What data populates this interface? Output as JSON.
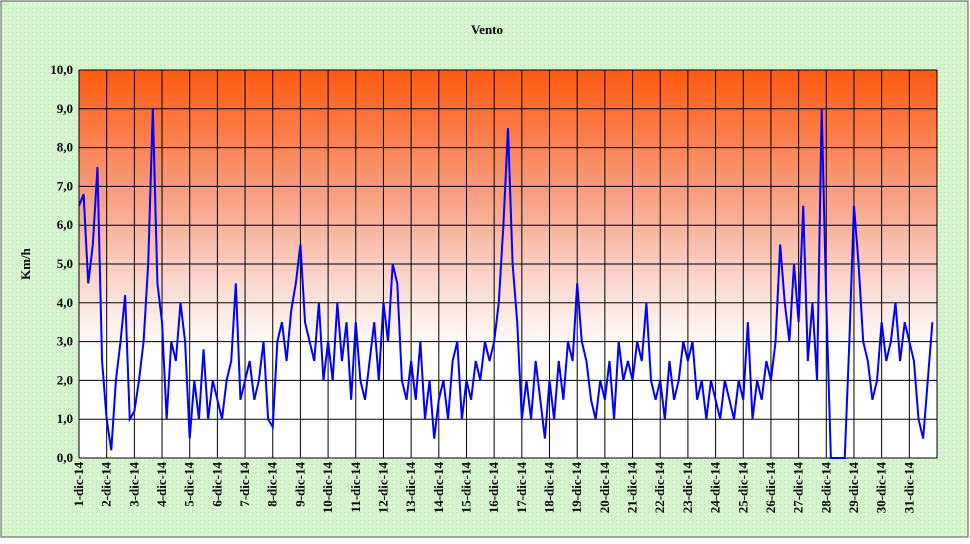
{
  "chart_data": {
    "type": "line",
    "title": "Vento",
    "y_label": "Km/h",
    "categories": [
      "1-dic-14",
      null,
      null,
      null,
      null,
      null,
      "2-dic-14",
      null,
      null,
      null,
      null,
      null,
      "3-dic-14",
      null,
      null,
      null,
      null,
      null,
      "4-dic-14",
      null,
      null,
      null,
      null,
      null,
      "5-dic-14",
      null,
      null,
      null,
      null,
      null,
      "6-dic-14",
      null,
      null,
      null,
      null,
      null,
      "7-dic-14",
      null,
      null,
      null,
      null,
      null,
      "8-dic-14",
      null,
      null,
      null,
      null,
      null,
      "9-dic-14",
      null,
      null,
      null,
      null,
      null,
      "10-dic-14",
      null,
      null,
      null,
      null,
      null,
      "11-dic-14",
      null,
      null,
      null,
      null,
      null,
      "12-dic-14",
      null,
      null,
      null,
      null,
      null,
      "13-dic-14",
      null,
      null,
      null,
      null,
      null,
      "14-dic-14",
      null,
      null,
      null,
      null,
      null,
      "15-dic-14",
      null,
      null,
      null,
      null,
      null,
      "16-dic-14",
      null,
      null,
      null,
      null,
      null,
      "17-dic-14",
      null,
      null,
      null,
      null,
      null,
      "18-dic-14",
      null,
      null,
      null,
      null,
      null,
      "19-dic-14",
      null,
      null,
      null,
      null,
      null,
      "20-dic-14",
      null,
      null,
      null,
      null,
      null,
      "21-dic-14",
      null,
      null,
      null,
      null,
      null,
      "22-dic-14",
      null,
      null,
      null,
      null,
      null,
      "23-dic-14",
      null,
      null,
      null,
      null,
      null,
      "24-dic-14",
      null,
      null,
      null,
      null,
      null,
      "25-dic-14",
      null,
      null,
      null,
      null,
      null,
      "26-dic-14",
      null,
      null,
      null,
      null,
      null,
      "27-dic-14",
      null,
      null,
      null,
      null,
      null,
      "28-dic-14",
      null,
      null,
      null,
      null,
      null,
      "29-dic-14",
      null,
      null,
      null,
      null,
      null,
      "30-dic-14",
      null,
      null,
      null,
      null,
      null,
      "31-dic-14",
      null,
      null,
      null,
      null,
      null
    ],
    "series": [
      {
        "name": "Vento",
        "color": "#0000ff",
        "values": [
          6.5,
          6.8,
          4.5,
          5.5,
          7.5,
          2.5,
          1.0,
          0.2,
          2.0,
          3.0,
          4.2,
          1.0,
          1.2,
          2.0,
          3.0,
          5.0,
          9.0,
          4.5,
          3.5,
          1.0,
          3.0,
          2.5,
          4.0,
          3.0,
          0.5,
          2.0,
          1.0,
          2.8,
          1.0,
          2.0,
          1.5,
          1.0,
          2.0,
          2.5,
          4.5,
          1.5,
          2.0,
          2.5,
          1.5,
          2.0,
          3.0,
          1.0,
          0.8,
          3.0,
          3.5,
          2.5,
          3.8,
          4.5,
          5.5,
          3.5,
          3.0,
          2.5,
          4.0,
          2.0,
          3.0,
          2.0,
          4.0,
          2.5,
          3.5,
          1.5,
          3.5,
          2.0,
          1.5,
          2.5,
          3.5,
          2.0,
          4.0,
          3.0,
          5.0,
          4.5,
          2.0,
          1.5,
          2.5,
          1.5,
          3.0,
          1.0,
          2.0,
          0.5,
          1.5,
          2.0,
          1.0,
          2.5,
          3.0,
          1.0,
          2.0,
          1.5,
          2.5,
          2.0,
          3.0,
          2.5,
          3.0,
          4.0,
          6.0,
          8.5,
          5.0,
          3.5,
          1.0,
          2.0,
          1.0,
          2.5,
          1.5,
          0.5,
          2.0,
          1.0,
          2.5,
          1.5,
          3.0,
          2.5,
          4.5,
          3.0,
          2.5,
          1.5,
          1.0,
          2.0,
          1.5,
          2.5,
          1.0,
          3.0,
          2.0,
          2.5,
          2.0,
          3.0,
          2.5,
          4.0,
          2.0,
          1.5,
          2.0,
          1.0,
          2.5,
          1.5,
          2.0,
          3.0,
          2.5,
          3.0,
          1.5,
          2.0,
          1.0,
          2.0,
          1.5,
          1.0,
          2.0,
          1.5,
          1.0,
          2.0,
          1.5,
          3.5,
          1.0,
          2.0,
          1.5,
          2.5,
          2.0,
          3.0,
          5.5,
          4.0,
          3.0,
          5.0,
          3.5,
          6.5,
          2.5,
          4.0,
          2.0,
          9.0,
          4.0,
          0.0,
          0.0,
          0.0,
          0.0,
          3.0,
          6.5,
          5.0,
          3.0,
          2.5,
          1.5,
          2.0,
          3.5,
          2.5,
          3.0,
          4.0,
          2.5,
          3.5,
          3.0,
          2.5,
          1.0,
          0.5,
          2.0,
          3.5
        ]
      }
    ],
    "ylim": [
      0,
      10
    ],
    "yticks": [
      {
        "value": 0,
        "label": "0,0"
      },
      {
        "value": 1,
        "label": "1,0"
      },
      {
        "value": 2,
        "label": "2,0"
      },
      {
        "value": 3,
        "label": "3,0"
      },
      {
        "value": 4,
        "label": "4,0"
      },
      {
        "value": 5,
        "label": "5,0"
      },
      {
        "value": 6,
        "label": "6,0"
      },
      {
        "value": 7,
        "label": "7,0"
      },
      {
        "value": 8,
        "label": "8,0"
      },
      {
        "value": 9,
        "label": "9,0"
      },
      {
        "value": 10,
        "label": "10,0"
      }
    ],
    "grid": true
  }
}
